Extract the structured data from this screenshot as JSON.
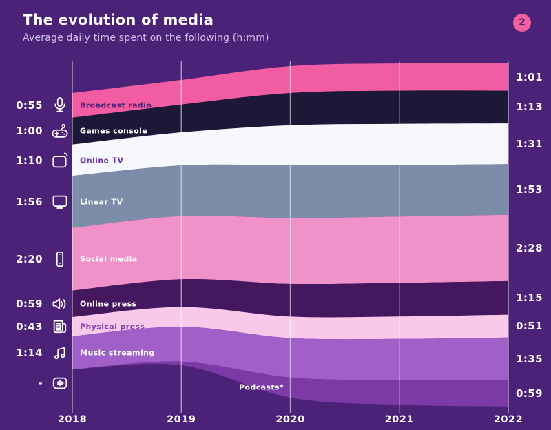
{
  "header": {
    "title": "The evolution of media",
    "subtitle": "Average daily time spent on the following (h:mm)",
    "badge": "2"
  },
  "colors": {
    "background": "#4C2279",
    "title_text": "#FFFFFF",
    "subtitle_text": "#D2C2EA",
    "badge_bg": "#F0609E",
    "badge_text": "#4B2179",
    "gridline": "#FFFFFF",
    "year_text": "#FFFFFF"
  },
  "chart_data": {
    "type": "area",
    "variant": "streamgraph",
    "title": "The evolution of media",
    "subtitle": "Average daily time spent on the following (h:mm)",
    "units": "h:mm",
    "x": [
      2018,
      2019,
      2020,
      2021,
      2022
    ],
    "x_axis_labels": [
      "2018",
      "2019",
      "2020",
      "2021",
      "2022"
    ],
    "grid": "vertical-lines-at-each-year",
    "value_labels": "start and end of each band (h:mm)",
    "series": [
      {
        "label": "Broadcast radio",
        "icon": "microphone-icon",
        "color": "#F25CA2",
        "label_color": "#4B2179",
        "value_2018": "0:55",
        "value_2022": "1:01",
        "values_min": [
          55,
          55,
          60,
          61,
          61
        ]
      },
      {
        "label": "Games console",
        "icon": "gamepad-icon",
        "color": "#1E1838",
        "label_color": "#FFFFFF",
        "value_2018": "1:00",
        "value_2022": "1:13",
        "values_min": [
          60,
          62,
          72,
          74,
          73
        ]
      },
      {
        "label": "Online TV",
        "icon": "online-tv-icon",
        "color": "#F7F8FD",
        "label_color": "#6B35A3",
        "value_2018": "1:10",
        "value_2022": "1:31",
        "values_min": [
          70,
          74,
          89,
          92,
          91
        ]
      },
      {
        "label": "Linear TV",
        "icon": "monitor-icon",
        "color": "#7D8CA8",
        "label_color": "#FFFFFF",
        "value_2018": "1:56",
        "value_2022": "1:53",
        "values_min": [
          116,
          113,
          118,
          115,
          113
        ]
      },
      {
        "label": "Social media",
        "icon": "smartphone-icon",
        "color": "#F191C9",
        "label_color": "#FFFFFF",
        "value_2018": "2:20",
        "value_2022": "2:28",
        "values_min": [
          140,
          141,
          147,
          148,
          148
        ]
      },
      {
        "label": "Online press",
        "icon": "speaker-icon",
        "color": "#45175F",
        "label_color": "#FFFFFF",
        "value_2018": "0:59",
        "value_2022": "1:15",
        "values_min": [
          59,
          62,
          73,
          75,
          75
        ]
      },
      {
        "label": "Physical press",
        "icon": "newspaper-icon",
        "color": "#F9C9EC",
        "label_color": "#8A3FB0",
        "value_2018": "0:43",
        "value_2022": "0:51",
        "values_min": [
          43,
          44,
          48,
          50,
          51
        ]
      },
      {
        "label": "Music streaming",
        "icon": "music-notes-icon",
        "color": "#A060C8",
        "label_color": "#FFFFFF",
        "value_2018": "1:14",
        "value_2022": "1:35",
        "values_min": [
          74,
          78,
          88,
          92,
          95
        ]
      },
      {
        "label": "Podcasts*",
        "icon": "podcast-icon",
        "color": "#7B3AA5",
        "label_color": "#FFFFFF",
        "value_2018": "-",
        "value_2022": "0:59",
        "values_min": [
          0,
          8,
          45,
          55,
          59
        ]
      }
    ]
  }
}
